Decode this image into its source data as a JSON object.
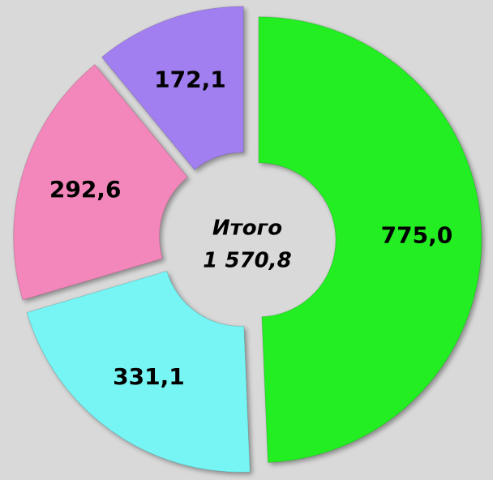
{
  "chart_data": {
    "type": "donut",
    "categories": [
      null,
      null,
      null,
      null
    ],
    "values": [
      775.0,
      331.1,
      292.6,
      172.1
    ],
    "value_labels": [
      "775,0",
      "331,1",
      "292,6",
      "172,1"
    ],
    "colors": [
      "#22ee22",
      "#77f5f5",
      "#f386ba",
      "#a17ff0"
    ],
    "center_title": "Итого",
    "total": {
      "value": 1570.8,
      "label": "1 570,8"
    }
  }
}
